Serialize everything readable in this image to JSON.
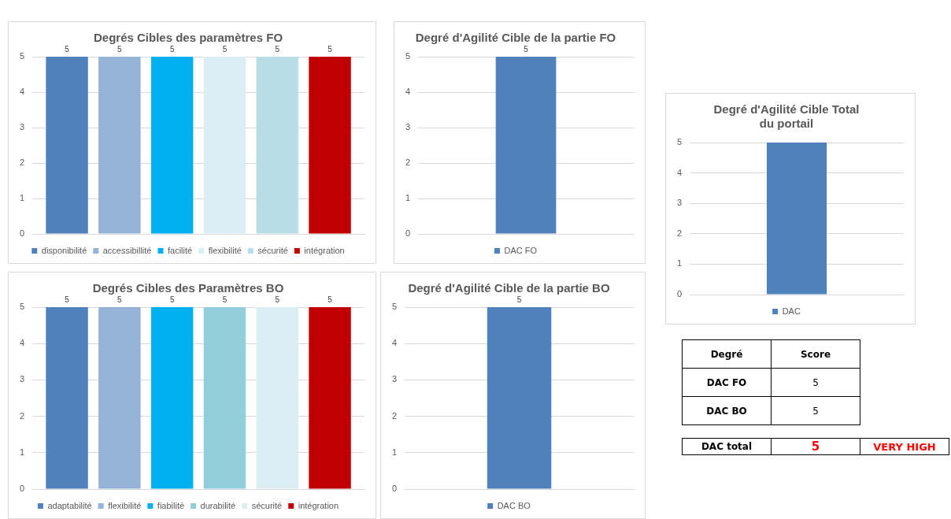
{
  "chart_data": [
    {
      "type": "bar",
      "title": "Degrés Cibles des paramètres FO",
      "categories": [
        null
      ],
      "series": [
        {
          "name": "disponibilité",
          "color": "#4f81bd",
          "values": [
            5
          ]
        },
        {
          "name": "accessibillité",
          "color": "#95b3d7",
          "values": [
            5
          ]
        },
        {
          "name": "facilité",
          "color": "#00b0f0",
          "values": [
            5
          ]
        },
        {
          "name": "flexibilité",
          "color": "#dbeef4",
          "values": [
            5
          ]
        },
        {
          "name": "sécurité",
          "color": "#b7dee8",
          "values": [
            5
          ]
        },
        {
          "name": "intégration",
          "color": "#c00000",
          "values": [
            5
          ]
        }
      ],
      "ylim": [
        0,
        5
      ],
      "yticks": [
        0,
        1,
        2,
        3,
        4,
        5
      ],
      "grid": "y",
      "legend": "bottom",
      "data_labels": true
    },
    {
      "type": "bar",
      "title": "Degré d'Agilité Cible de la partie FO",
      "categories": [
        null
      ],
      "series": [
        {
          "name": "DAC FO",
          "color": "#4f81bd",
          "values": [
            5
          ]
        }
      ],
      "ylim": [
        0,
        5
      ],
      "yticks": [
        0,
        1,
        2,
        3,
        4,
        5
      ],
      "grid": "y",
      "legend": "bottom",
      "data_labels": true
    },
    {
      "type": "bar",
      "title": "Degré d'Agilité Cible Total\ndu portail",
      "categories": [
        null
      ],
      "series": [
        {
          "name": "DAC",
          "color": "#4f81bd",
          "values": [
            5
          ]
        }
      ],
      "ylim": [
        0,
        5
      ],
      "yticks": [
        0,
        1,
        2,
        3,
        4,
        5
      ],
      "grid": "y",
      "legend": "bottom"
    },
    {
      "type": "bar",
      "title": "Degrés Cibles des Paramètres BO",
      "categories": [
        null
      ],
      "series": [
        {
          "name": "adaptabilité",
          "color": "#4f81bd",
          "values": [
            5
          ]
        },
        {
          "name": "flexibilité",
          "color": "#95b3d7",
          "values": [
            5
          ]
        },
        {
          "name": "fiabilité",
          "color": "#00b0f0",
          "values": [
            5
          ]
        },
        {
          "name": "durabilité",
          "color": "#92cddc",
          "values": [
            5
          ]
        },
        {
          "name": "sécurité",
          "color": "#dbeef4",
          "values": [
            5
          ]
        },
        {
          "name": "intégration",
          "color": "#c00000",
          "values": [
            5
          ]
        }
      ],
      "ylim": [
        0,
        5
      ],
      "yticks": [
        0,
        1,
        2,
        3,
        4,
        5
      ],
      "grid": "y",
      "legend": "bottom",
      "data_labels": true
    },
    {
      "type": "bar",
      "title": "Degré d'Agilité Cible de la partie BO",
      "categories": [
        null
      ],
      "series": [
        {
          "name": "DAC BO",
          "color": "#4f81bd",
          "values": [
            5
          ]
        }
      ],
      "ylim": [
        0,
        5
      ],
      "yticks": [
        0,
        1,
        2,
        3,
        4,
        5
      ],
      "grid": "y",
      "legend": "bottom",
      "data_labels": true
    },
    {
      "type": "other",
      "xlabel": "Degré",
      "ylabel": "Score",
      "categories": [
        "DAC FO",
        "DAC BO",
        "DAC total"
      ],
      "values": [
        5,
        5,
        5
      ],
      "colors": [
        "#000000",
        "#000000",
        "#ff0000"
      ],
      "data_labels": true,
      "annotations": [
        "VERY HIGH"
      ]
    }
  ]
}
